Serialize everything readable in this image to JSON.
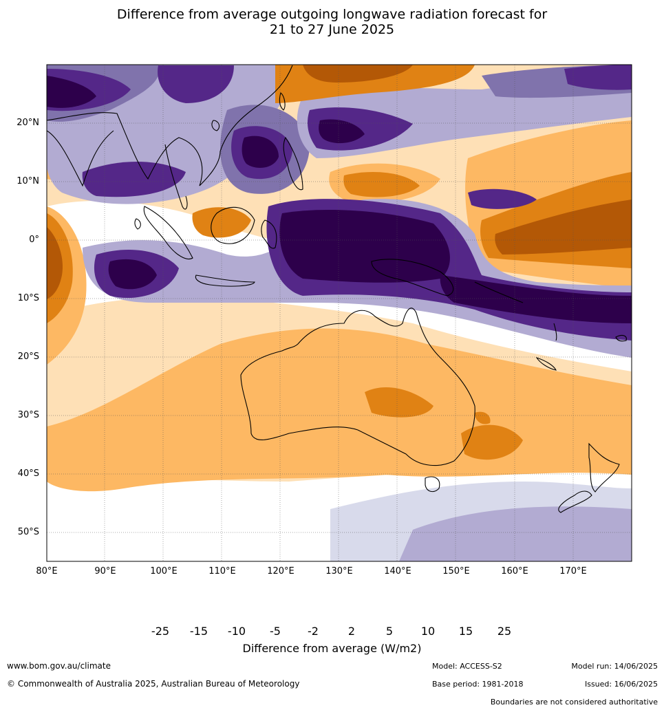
{
  "title": {
    "line1": "Difference from average outgoing longwave radiation forecast for",
    "line2": "21 to 27 June 2025"
  },
  "map": {
    "lat_labels": [
      "20°N",
      "10°N",
      "0°",
      "10°S",
      "20°S",
      "30°S",
      "40°S",
      "50°S"
    ],
    "lon_labels": [
      "80°E",
      "90°E",
      "100°E",
      "110°E",
      "120°E",
      "130°E",
      "140°E",
      "150°E",
      "160°E",
      "170°E"
    ],
    "palette": {
      "lt_-25": "#2d004b",
      "-25_-15": "#542788",
      "-15_-10": "#8073ac",
      "-10_-5": "#b2abd2",
      "-5_-2": "#d8daeb",
      "-2_2": "#ffffff",
      "2_5": "#fee0b6",
      "5_10": "#fdb863",
      "10_15": "#e08214",
      "15_25": "#b35806",
      "gt_25": "#7f3b08"
    }
  },
  "colorbar": {
    "ticks": [
      "-25",
      "-15",
      "-10",
      "-5",
      "-2",
      "2",
      "5",
      "10",
      "15",
      "25"
    ],
    "colors": [
      "#2d004b",
      "#542788",
      "#8073ac",
      "#b2abd2",
      "#d8daeb",
      "#ffffff",
      "#fee0b6",
      "#fdb863",
      "#e08214",
      "#b35806",
      "#7f3b08"
    ],
    "label": "Difference from average (W/m2)"
  },
  "footer": {
    "website": "www.bom.gov.au/climate",
    "copyright": "© Commonwealth of Australia 2025, Australian Bureau of Meteorology",
    "model": "Model: ACCESS-S2",
    "model_run": "Model run: 14/06/2025",
    "base_period": "Base period: 1981-2018",
    "issued": "Issued: 16/06/2025",
    "disclaimer": "Boundaries are not considered authoritative"
  }
}
